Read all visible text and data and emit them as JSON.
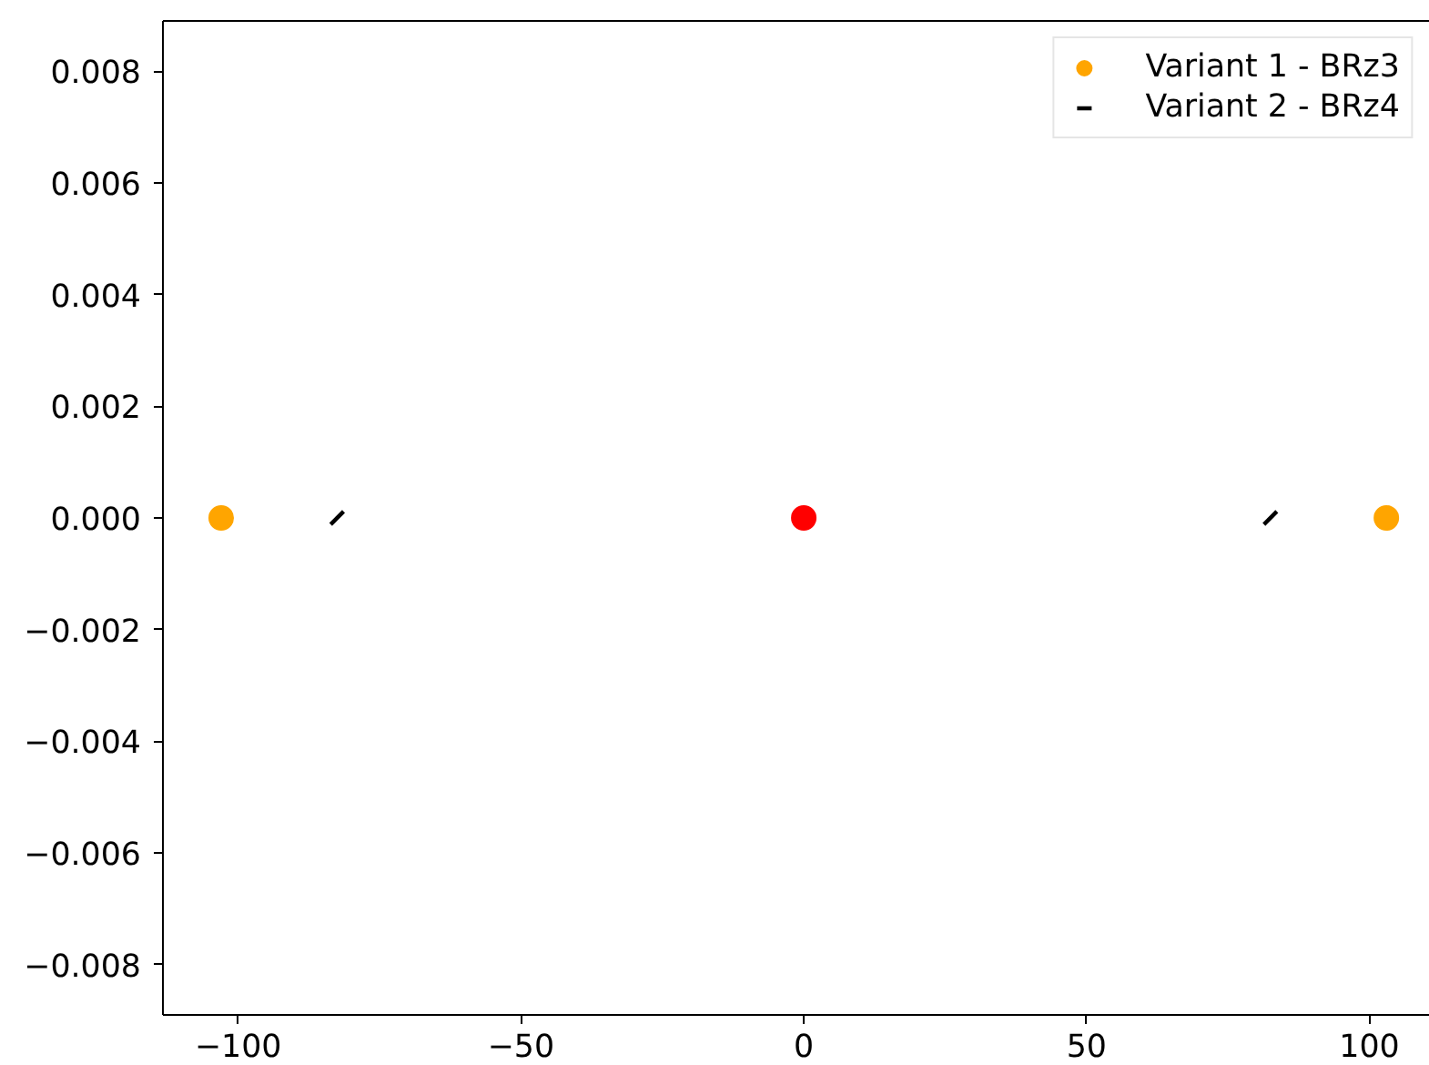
{
  "chart_data": {
    "type": "scatter",
    "xlim": [
      -113.3,
      110.7
    ],
    "ylim": [
      -0.0089,
      0.0089
    ],
    "xticks": [
      {
        "value": -100,
        "label": "−100"
      },
      {
        "value": -50,
        "label": "−50"
      },
      0,
      50,
      100
    ],
    "yticks": [
      {
        "value": -0.008,
        "label": "−0.008"
      },
      {
        "value": -0.006,
        "label": "−0.006"
      },
      {
        "value": -0.004,
        "label": "−0.004"
      },
      {
        "value": -0.002,
        "label": "−0.002"
      },
      {
        "value": 0,
        "label": "0.000"
      },
      0.002,
      0.004,
      0.006,
      0.008
    ],
    "marker": "circle",
    "grid": false,
    "legend": "top right",
    "series": [
      {
        "name": "Variant 1 - BRz3",
        "color": "#ffa500",
        "x": [
          -103,
          103
        ],
        "values": [
          0,
          0
        ]
      },
      {
        "name": "Variant 2 - BRz4",
        "color": "#000000",
        "marker": "cross",
        "x": [
          -82.5,
          82.5
        ],
        "values": [
          0,
          0
        ]
      },
      {
        "color": "#ff0000",
        "x": [
          0
        ],
        "values": [
          0
        ]
      }
    ]
  }
}
